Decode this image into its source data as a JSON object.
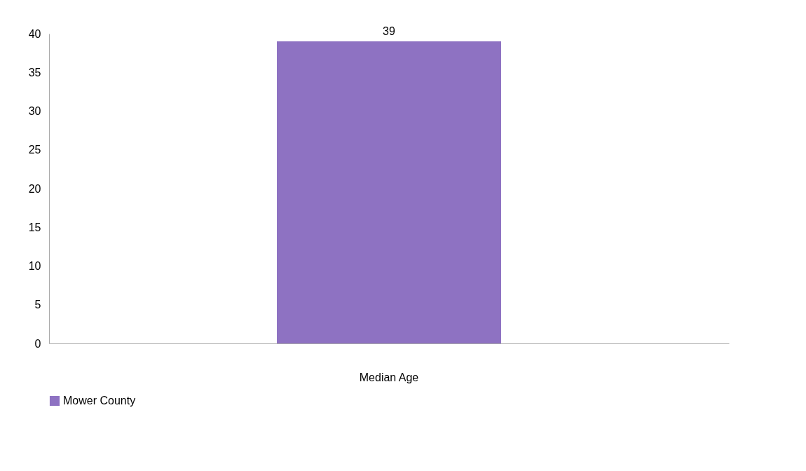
{
  "chart_data": {
    "type": "bar",
    "categories": [
      "Median Age"
    ],
    "series": [
      {
        "name": "Mower County",
        "color": "#8e72c2",
        "values": [
          39
        ]
      }
    ],
    "ylim": [
      0,
      40
    ],
    "yticks": [
      0,
      5,
      10,
      15,
      20,
      25,
      30,
      35,
      40
    ],
    "data_labels": true,
    "legend": "bottom",
    "grid": false
  }
}
